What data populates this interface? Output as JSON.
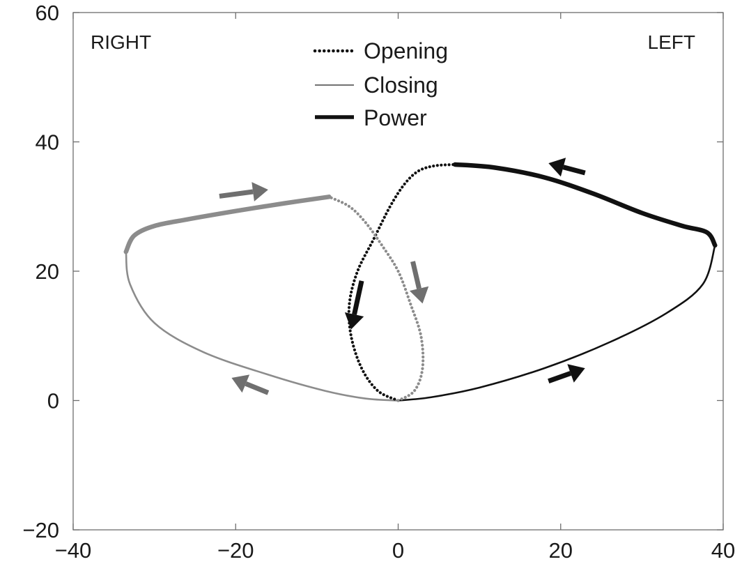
{
  "chart_data": {
    "type": "line",
    "title": "",
    "xlabel": "",
    "ylabel": "",
    "xlim": [
      -40,
      40
    ],
    "ylim": [
      -20,
      60
    ],
    "xticks": [
      -40,
      -20,
      0,
      20,
      40
    ],
    "yticks": [
      -20,
      0,
      20,
      40,
      60
    ],
    "xtick_labels": [
      "−40",
      "−20",
      "0",
      "20",
      "40"
    ],
    "ytick_labels": [
      "−20",
      "0",
      "20",
      "40",
      "60"
    ],
    "grid": false,
    "legend_position": "top-center",
    "annotations": {
      "right": "RIGHT",
      "left": "LEFT"
    },
    "legend": [
      {
        "label": "Opening",
        "style": "dotted"
      },
      {
        "label": "Closing",
        "style": "thin"
      },
      {
        "label": "Power",
        "style": "thick"
      }
    ],
    "colors": {
      "left_hand": "#111111",
      "right_hand": "#8c8c8c",
      "arrow_dark": "#111111",
      "arrow_grey": "#6f6f6f"
    },
    "series": [
      {
        "side": "left",
        "phase": "Opening",
        "x": [
          0.0,
          -2.5,
          -4.5,
          -5.8,
          -6.0,
          -5.0,
          -3.0,
          -1.0,
          0.8,
          2.5,
          4.5,
          7.0
        ],
        "y": [
          0.0,
          1.5,
          5.0,
          10.0,
          15.0,
          20.0,
          25.0,
          30.0,
          33.5,
          35.5,
          36.3,
          36.5
        ]
      },
      {
        "side": "left",
        "phase": "Power",
        "x": [
          7.0,
          12.0,
          18.0,
          24.0,
          30.0,
          35.0,
          38.0,
          39.0
        ],
        "y": [
          36.5,
          36.0,
          34.5,
          32.0,
          29.0,
          27.0,
          26.0,
          24.0
        ]
      },
      {
        "side": "left",
        "phase": "Closing",
        "x": [
          39.0,
          37.5,
          33.0,
          26.0,
          18.0,
          10.0,
          4.0,
          0.0
        ],
        "y": [
          24.0,
          18.0,
          13.5,
          9.0,
          5.0,
          2.0,
          0.5,
          0.0
        ]
      },
      {
        "side": "right",
        "phase": "Opening",
        "x": [
          0.0,
          2.0,
          3.0,
          2.8,
          1.5,
          0.0,
          -2.0,
          -4.0,
          -6.0,
          -8.5
        ],
        "y": [
          0.0,
          1.5,
          5.0,
          10.0,
          15.0,
          20.0,
          24.0,
          27.5,
          30.0,
          31.5
        ]
      },
      {
        "side": "right",
        "phase": "Power",
        "x": [
          -8.5,
          -14.0,
          -20.0,
          -26.0,
          -30.0,
          -32.5,
          -33.5
        ],
        "y": [
          31.5,
          30.5,
          29.3,
          28.0,
          27.0,
          25.5,
          23.0
        ]
      },
      {
        "side": "right",
        "phase": "Closing",
        "x": [
          -33.5,
          -33.0,
          -30.0,
          -24.0,
          -16.0,
          -9.0,
          -4.0,
          0.0
        ],
        "y": [
          23.0,
          18.0,
          12.0,
          7.5,
          4.0,
          1.5,
          0.3,
          0.0
        ]
      }
    ],
    "arrows": [
      {
        "color": "grey",
        "from": [
          -22,
          31.6
        ],
        "to": [
          -16,
          32.6
        ]
      },
      {
        "color": "dark",
        "from": [
          23,
          35.2
        ],
        "to": [
          18.5,
          36.7
        ]
      },
      {
        "color": "dark",
        "from": [
          -4.5,
          18.5
        ],
        "to": [
          -5.8,
          11.0
        ]
      },
      {
        "color": "grey",
        "from": [
          1.8,
          21.5
        ],
        "to": [
          3.0,
          15.0
        ]
      },
      {
        "color": "grey",
        "from": [
          -16,
          1.2
        ],
        "to": [
          -20.5,
          3.5
        ]
      },
      {
        "color": "dark",
        "from": [
          18.5,
          3.0
        ],
        "to": [
          23,
          5.0
        ]
      }
    ]
  }
}
